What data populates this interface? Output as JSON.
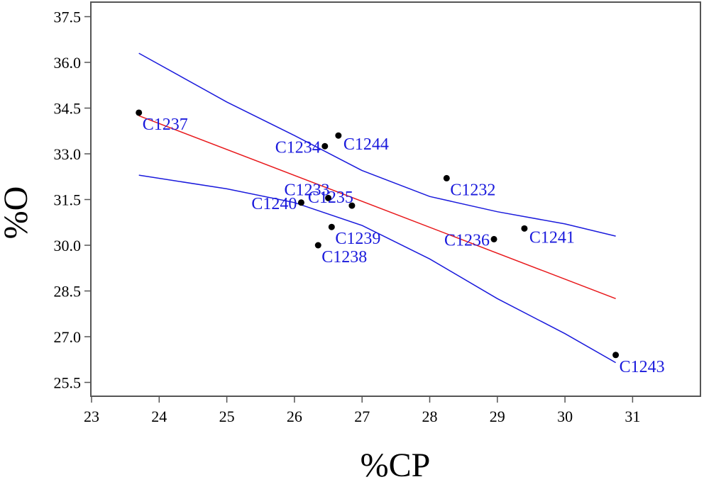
{
  "chart_data": {
    "type": "scatter",
    "xlabel": "%CP",
    "ylabel": "%O",
    "xlim": [
      23,
      32
    ],
    "ylim": [
      25.0,
      37.8
    ],
    "x_ticks": [
      "23",
      "24",
      "25",
      "26",
      "27",
      "28",
      "29",
      "30",
      "31"
    ],
    "y_ticks": [
      "25.5",
      "27.0",
      "28.5",
      "30.0",
      "31.5",
      "33.0",
      "34.5",
      "36.0",
      "37.5"
    ],
    "grid": false,
    "points": [
      {
        "label": "C1237",
        "x": 23.7,
        "y": 34.35,
        "label_pos": "below-right"
      },
      {
        "label": "C1234",
        "x": 26.45,
        "y": 33.25,
        "label_pos": "left"
      },
      {
        "label": "C1244",
        "x": 26.65,
        "y": 33.6,
        "label_pos": "right"
      },
      {
        "label": "C1232",
        "x": 28.25,
        "y": 32.2,
        "label_pos": "below-right"
      },
      {
        "label": "C1233",
        "x": 26.5,
        "y": 31.55,
        "label_pos": "above-left"
      },
      {
        "label": "C1235",
        "x": 26.85,
        "y": 31.3,
        "label_pos": "above-left"
      },
      {
        "label": "C1240",
        "x": 26.1,
        "y": 31.4,
        "label_pos": "left"
      },
      {
        "label": "C1239",
        "x": 26.55,
        "y": 30.6,
        "label_pos": "below-right"
      },
      {
        "label": "C1238",
        "x": 26.35,
        "y": 30.0,
        "label_pos": "below-right"
      },
      {
        "label": "C1236",
        "x": 28.95,
        "y": 30.2,
        "label_pos": "left"
      },
      {
        "label": "C1241",
        "x": 29.4,
        "y": 30.55,
        "label_pos": "right"
      },
      {
        "label": "C1243",
        "x": 30.75,
        "y": 26.4,
        "label_pos": "below-right"
      }
    ],
    "fit_line": {
      "x": [
        23.7,
        30.75
      ],
      "y": [
        34.25,
        28.25
      ]
    },
    "confidence_upper": {
      "x": [
        23.7,
        25.0,
        26.0,
        27.0,
        28.0,
        29.0,
        30.0,
        30.75
      ],
      "y": [
        36.3,
        34.7,
        33.6,
        32.45,
        31.6,
        31.1,
        30.7,
        30.3
      ]
    },
    "confidence_lower": {
      "x": [
        23.7,
        25.0,
        26.0,
        27.0,
        28.0,
        29.0,
        30.0,
        30.75
      ],
      "y": [
        32.3,
        31.85,
        31.4,
        30.65,
        29.55,
        28.25,
        27.1,
        26.15
      ]
    },
    "colors": {
      "fit_line": "#e8191c",
      "confidence_band": "#1a1adc",
      "points": "#000000",
      "point_labels": "#1a1adc",
      "frame": "#555555"
    }
  }
}
